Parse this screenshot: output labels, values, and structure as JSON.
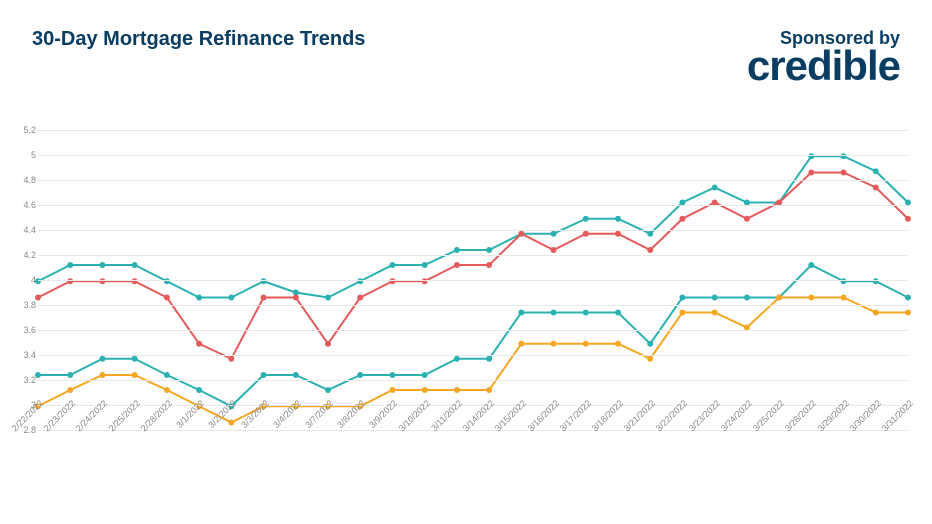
{
  "header": {
    "title": "30-Day Mortgage Refinance Trends",
    "sponsor_label": "Sponsored by",
    "sponsor_logo": "credible"
  },
  "chart": {
    "type": "line",
    "title_fontsize": 20,
    "title_color": "#0a3d62",
    "background_color": "#ffffff",
    "grid_color": "#e8e8e8",
    "axis_label_color": "#888888",
    "axis_label_fontsize": 9,
    "ylim": [
      2.8,
      5.2
    ],
    "ytick_step": 0.2,
    "yticks": [
      2.8,
      3.0,
      3.2,
      3.4,
      3.6,
      3.8,
      4.0,
      4.2,
      4.4,
      4.6,
      4.8,
      5.0,
      5.2
    ],
    "x_labels": [
      "2/22/2022",
      "2/23/2022",
      "2/24/2022",
      "2/25/2022",
      "2/28/2022",
      "3/1/2022",
      "3/2/2022",
      "3/3/2022",
      "3/4/2022",
      "3/7/2022",
      "3/8/2022",
      "3/9/2022",
      "3/10/2022",
      "3/11/2022",
      "3/14/2022",
      "3/15/2022",
      "3/16/2022",
      "3/17/2022",
      "3/18/2022",
      "3/21/2022",
      "3/22/2022",
      "3/23/2022",
      "3/24/2022",
      "3/25/2022",
      "3/28/2022",
      "3/29/2022",
      "3/30/2022",
      "3/31/2022"
    ],
    "x_label_rotation": -45,
    "line_width": 2,
    "marker_size": 3,
    "marker_style": "circle",
    "series": [
      {
        "name": "series-teal-high",
        "color": "#2bb1b1",
        "values": [
          3.99,
          4.12,
          4.12,
          4.12,
          3.99,
          3.86,
          3.86,
          3.99,
          3.9,
          3.86,
          3.99,
          4.12,
          4.12,
          4.24,
          4.24,
          4.37,
          4.37,
          4.49,
          4.49,
          4.37,
          4.62,
          4.74,
          4.62,
          4.62,
          4.99,
          4.99,
          4.87,
          4.62
        ]
      },
      {
        "name": "series-red",
        "color": "#e55a5a",
        "values": [
          3.86,
          3.99,
          3.99,
          3.99,
          3.86,
          3.49,
          3.37,
          3.86,
          3.86,
          3.49,
          3.86,
          3.99,
          3.99,
          4.12,
          4.12,
          4.37,
          4.24,
          4.37,
          4.37,
          4.24,
          4.49,
          4.62,
          4.49,
          4.62,
          4.86,
          4.86,
          4.74,
          4.49
        ]
      },
      {
        "name": "series-teal-low",
        "color": "#2bb1b1",
        "values": [
          3.24,
          3.24,
          3.37,
          3.37,
          3.24,
          3.12,
          2.99,
          3.24,
          3.24,
          3.12,
          3.24,
          3.24,
          3.24,
          3.37,
          3.37,
          3.74,
          3.74,
          3.74,
          3.74,
          3.49,
          3.86,
          3.86,
          3.86,
          3.86,
          4.12,
          3.99,
          3.99,
          3.86
        ]
      },
      {
        "name": "series-orange",
        "color": "#f5a623",
        "values": [
          2.99,
          3.12,
          3.24,
          3.24,
          3.12,
          2.99,
          2.86,
          2.99,
          2.99,
          2.99,
          2.99,
          3.12,
          3.12,
          3.12,
          3.12,
          3.49,
          3.49,
          3.49,
          3.49,
          3.37,
          3.74,
          3.74,
          3.62,
          3.86,
          3.86,
          3.86,
          3.74,
          3.74
        ]
      }
    ]
  }
}
